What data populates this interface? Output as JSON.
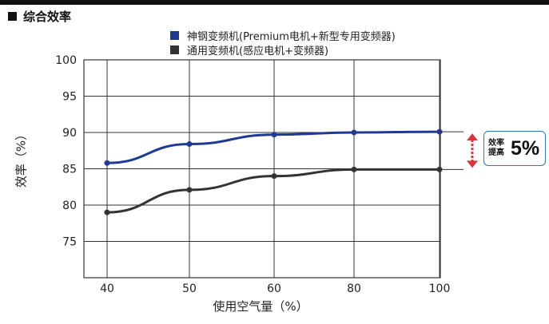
{
  "header": {
    "title": "综合效率"
  },
  "chart_data": {
    "type": "line",
    "title": "",
    "xlabel": "使用空气量（%）",
    "ylabel": "效率（%）",
    "categories": [
      "40",
      "50",
      "60",
      "80",
      "100"
    ],
    "yticks": [
      "100",
      "95",
      "90",
      "85",
      "80",
      "75"
    ],
    "ylim": [
      70,
      100
    ],
    "grid": true,
    "legend_position": "top-center",
    "series": [
      {
        "name": "神钢变频机(Premium电机+新型专用变频器)",
        "values": [
          85.8,
          88.4,
          89.7,
          90.0,
          90.1
        ],
        "color": "#1f3a93"
      },
      {
        "name": "通用变频机(感应电机+变频器)",
        "values": [
          79.0,
          82.1,
          84.0,
          84.9,
          84.9
        ],
        "color": "#333333"
      }
    ],
    "annotation": {
      "line1": "效率",
      "line2": "提高",
      "value": "5%"
    }
  },
  "colors": {
    "accent": "#1f3a93",
    "arrow": "#d9343b",
    "badge_border": "#2a7ab8"
  }
}
